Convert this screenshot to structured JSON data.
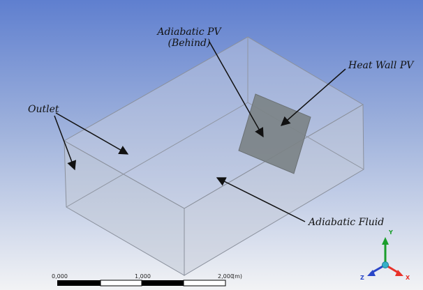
{
  "labels": {
    "adiabatic_pv_line1": "Adiabatic PV",
    "adiabatic_pv_line2": "(Behind)",
    "heat_wall_pv": "Heat Wall PV",
    "outlet": "Outlet",
    "adiabatic_fluid": "Adiabatic Fluid"
  },
  "scale_bar": {
    "ticks": [
      "0,000",
      "1,000",
      "2,000"
    ],
    "unit": "(m)"
  },
  "axis_triad": {
    "x_label": "X",
    "y_label": "Y",
    "z_label": "Z",
    "colors": {
      "x": "#e8322a",
      "y": "#1a9e2c",
      "z": "#2a46c8",
      "origin": "#36b0c9"
    }
  },
  "colors": {
    "background_top": "#5f7fcf",
    "background_bottom": "#f2f3f5",
    "box_face": "#c4cbd9",
    "box_edge": "#8a909c",
    "pv_panel": "#7c8387"
  }
}
